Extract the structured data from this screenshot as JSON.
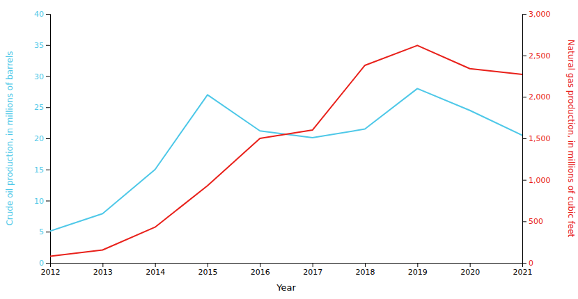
{
  "chart_data": {
    "type": "line",
    "xlabel": "Year",
    "ylabel": "Crude oil production, in millions of barrels",
    "y2label": "Natural gas production, in millions of cubic feet",
    "x": [
      2012,
      2013,
      2014,
      2015,
      2016,
      2017,
      2018,
      2019,
      2020,
      2021
    ],
    "xlim": [
      2012,
      2021
    ],
    "xticks": [
      2012,
      2013,
      2014,
      2015,
      2016,
      2017,
      2018,
      2019,
      2020,
      2021
    ],
    "ylim": [
      0,
      40
    ],
    "yticks": [
      0,
      5,
      10,
      15,
      20,
      25,
      30,
      35,
      40
    ],
    "y2lim": [
      0,
      3000
    ],
    "y2ticks": [
      0,
      500,
      {
        "value": 1000,
        "label": "1,000"
      },
      {
        "value": 1500,
        "label": "1,500"
      },
      {
        "value": 2000,
        "label": "2,000"
      },
      {
        "value": 2500,
        "label": "2,500"
      },
      {
        "value": 3000,
        "label": "3,000"
      }
    ],
    "grid": false,
    "series": [
      {
        "color": "#4EC8E8",
        "values": [
          5.1,
          7.9,
          15.0,
          27.0,
          21.2,
          20.1,
          21.5,
          28.0,
          24.5,
          20.5
        ]
      },
      {
        "color": "#E8201A",
        "axis": "y2",
        "values": [
          80,
          155,
          430,
          930,
          1500,
          1600,
          2380,
          2620,
          2340,
          2270
        ]
      }
    ]
  }
}
